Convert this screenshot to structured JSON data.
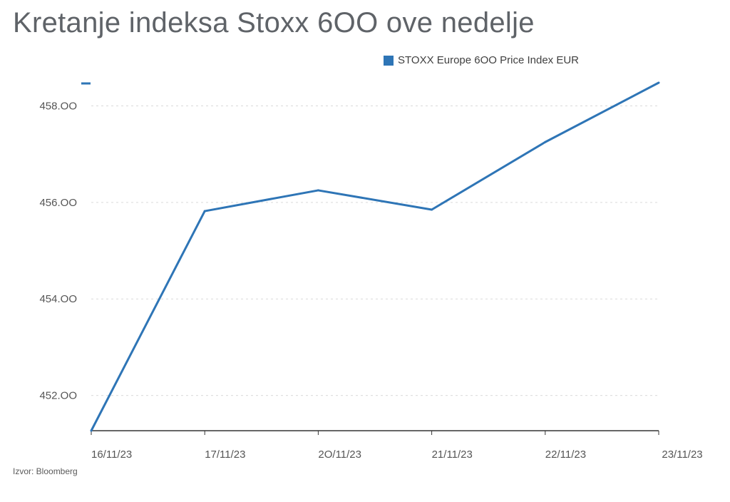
{
  "title": "Kretanje indeksa Stoxx 6OO ove nedelje",
  "source": "Izvor: Bloomberg",
  "colors": {
    "line": "#2e75b6",
    "grid": "#d9d9d9",
    "axis": "#333333",
    "title": "#5f6368"
  },
  "chart_data": {
    "type": "line",
    "categories": [
      "16/11/23",
      "17/11/23",
      "2O/11/23",
      "21/11/23",
      "22/11/23",
      "23/11/23"
    ],
    "series": [
      {
        "name": "STOXX Europe 6OO Price Index EUR",
        "values": [
          451.27,
          455.82,
          456.25,
          455.85,
          457.25,
          458.48
        ]
      }
    ],
    "yticks": [
      "452.OO",
      "454.OO",
      "456.OO",
      "458.OO"
    ],
    "ytick_values": [
      452,
      454,
      456,
      458
    ],
    "ylim": [
      451.27,
      458.48
    ],
    "grid": true,
    "legend_position": "top-right"
  }
}
